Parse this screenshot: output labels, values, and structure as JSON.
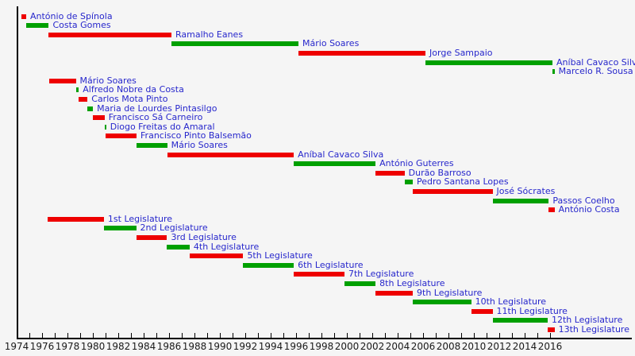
{
  "chart_data": {
    "type": "bar",
    "variant": "gantt-timeline",
    "title": "",
    "xlabel": "",
    "ylabel": "",
    "grid": false,
    "legend": null,
    "x_axis": {
      "min": 1974,
      "max": 2016,
      "minor_tick_step_years": 1,
      "label_step_years": 2,
      "labels": [
        "1974",
        "1976",
        "1978",
        "1980",
        "1982",
        "1984",
        "1986",
        "1988",
        "1990",
        "1992",
        "1994",
        "1996",
        "1998",
        "2000",
        "2002",
        "2004",
        "2006",
        "2008",
        "2010",
        "2012",
        "2014",
        "2016"
      ]
    },
    "colors": {
      "red": "#ee0000",
      "green": "#00a000",
      "label_blue": "#2727cc",
      "axis": "#000000",
      "axis_text": "#1a1a1a",
      "background": "#f5f5f5"
    },
    "sections": [
      {
        "name": "presidents",
        "items": [
          {
            "label": "António de Spínola",
            "start": 1974.37,
            "end": 1974.75,
            "color": "red"
          },
          {
            "label": "Costa Gomes",
            "start": 1974.75,
            "end": 1976.53,
            "color": "green"
          },
          {
            "label": "Ramalho Eanes",
            "start": 1976.53,
            "end": 1986.19,
            "color": "red"
          },
          {
            "label": "Mário Soares",
            "start": 1986.19,
            "end": 1996.19,
            "color": "green"
          },
          {
            "label": "Jorge Sampaio",
            "start": 1996.19,
            "end": 2006.19,
            "color": "red"
          },
          {
            "label": "Aníbal Cavaco Silva",
            "start": 2006.19,
            "end": 2016.19,
            "color": "green"
          },
          {
            "label": "Marcelo R. Sousa",
            "start": 2016.19,
            "end": 2016.35,
            "color": "green"
          }
        ]
      },
      {
        "name": "prime_ministers",
        "items": [
          {
            "label": "Mário Soares",
            "start": 1976.56,
            "end": 1978.66,
            "color": "red"
          },
          {
            "label": "Alfredo Nobre da Costa",
            "start": 1978.66,
            "end": 1978.89,
            "color": "green"
          },
          {
            "label": "Carlos Mota Pinto",
            "start": 1978.89,
            "end": 1979.58,
            "color": "red"
          },
          {
            "label": "Maria de Lourdes Pintasilgo",
            "start": 1979.58,
            "end": 1980.01,
            "color": "green"
          },
          {
            "label": "Francisco Sá Carneiro",
            "start": 1980.01,
            "end": 1980.92,
            "color": "red"
          },
          {
            "label": "Diogo Freitas do Amaral",
            "start": 1980.92,
            "end": 1981.02,
            "color": "green"
          },
          {
            "label": "Francisco Pinto Balsemão",
            "start": 1981.02,
            "end": 1983.44,
            "color": "red"
          },
          {
            "label": "Mário Soares",
            "start": 1983.44,
            "end": 1985.85,
            "color": "green"
          },
          {
            "label": "Aníbal Cavaco Silva",
            "start": 1985.85,
            "end": 1995.82,
            "color": "red"
          },
          {
            "label": "António Guterres",
            "start": 1995.82,
            "end": 2002.26,
            "color": "green"
          },
          {
            "label": "Durão Barroso",
            "start": 2002.26,
            "end": 2004.54,
            "color": "red"
          },
          {
            "label": "Pedro Santana Lopes",
            "start": 2004.54,
            "end": 2005.19,
            "color": "green"
          },
          {
            "label": "José Sócrates",
            "start": 2005.19,
            "end": 2011.47,
            "color": "red"
          },
          {
            "label": "Passos Coelho",
            "start": 2011.47,
            "end": 2015.9,
            "color": "green"
          },
          {
            "label": "António Costa",
            "start": 2015.9,
            "end": 2016.35,
            "color": "red"
          }
        ]
      },
      {
        "name": "legislatures",
        "items": [
          {
            "label": "1st Legislature",
            "start": 1976.42,
            "end": 1980.87,
            "color": "red"
          },
          {
            "label": "2nd Legislature",
            "start": 1980.87,
            "end": 1983.41,
            "color": "green"
          },
          {
            "label": "3rd Legislature",
            "start": 1983.41,
            "end": 1985.84,
            "color": "red"
          },
          {
            "label": "4th Legislature",
            "start": 1985.84,
            "end": 1987.62,
            "color": "green"
          },
          {
            "label": "5th Legislature",
            "start": 1987.62,
            "end": 1991.84,
            "color": "red"
          },
          {
            "label": "6th Legislature",
            "start": 1991.84,
            "end": 1995.82,
            "color": "green"
          },
          {
            "label": "7th Legislature",
            "start": 1995.82,
            "end": 1999.81,
            "color": "red"
          },
          {
            "label": "8th Legislature",
            "start": 1999.81,
            "end": 2002.26,
            "color": "green"
          },
          {
            "label": "9th Legislature",
            "start": 2002.26,
            "end": 2005.19,
            "color": "red"
          },
          {
            "label": "10th Legislature",
            "start": 2005.19,
            "end": 2009.79,
            "color": "green"
          },
          {
            "label": "11th Legislature",
            "start": 2009.79,
            "end": 2011.47,
            "color": "red"
          },
          {
            "label": "12th Legislature",
            "start": 2011.47,
            "end": 2015.81,
            "color": "green"
          },
          {
            "label": "13th Legislature",
            "start": 2015.81,
            "end": 2016.35,
            "color": "red"
          }
        ]
      }
    ]
  }
}
